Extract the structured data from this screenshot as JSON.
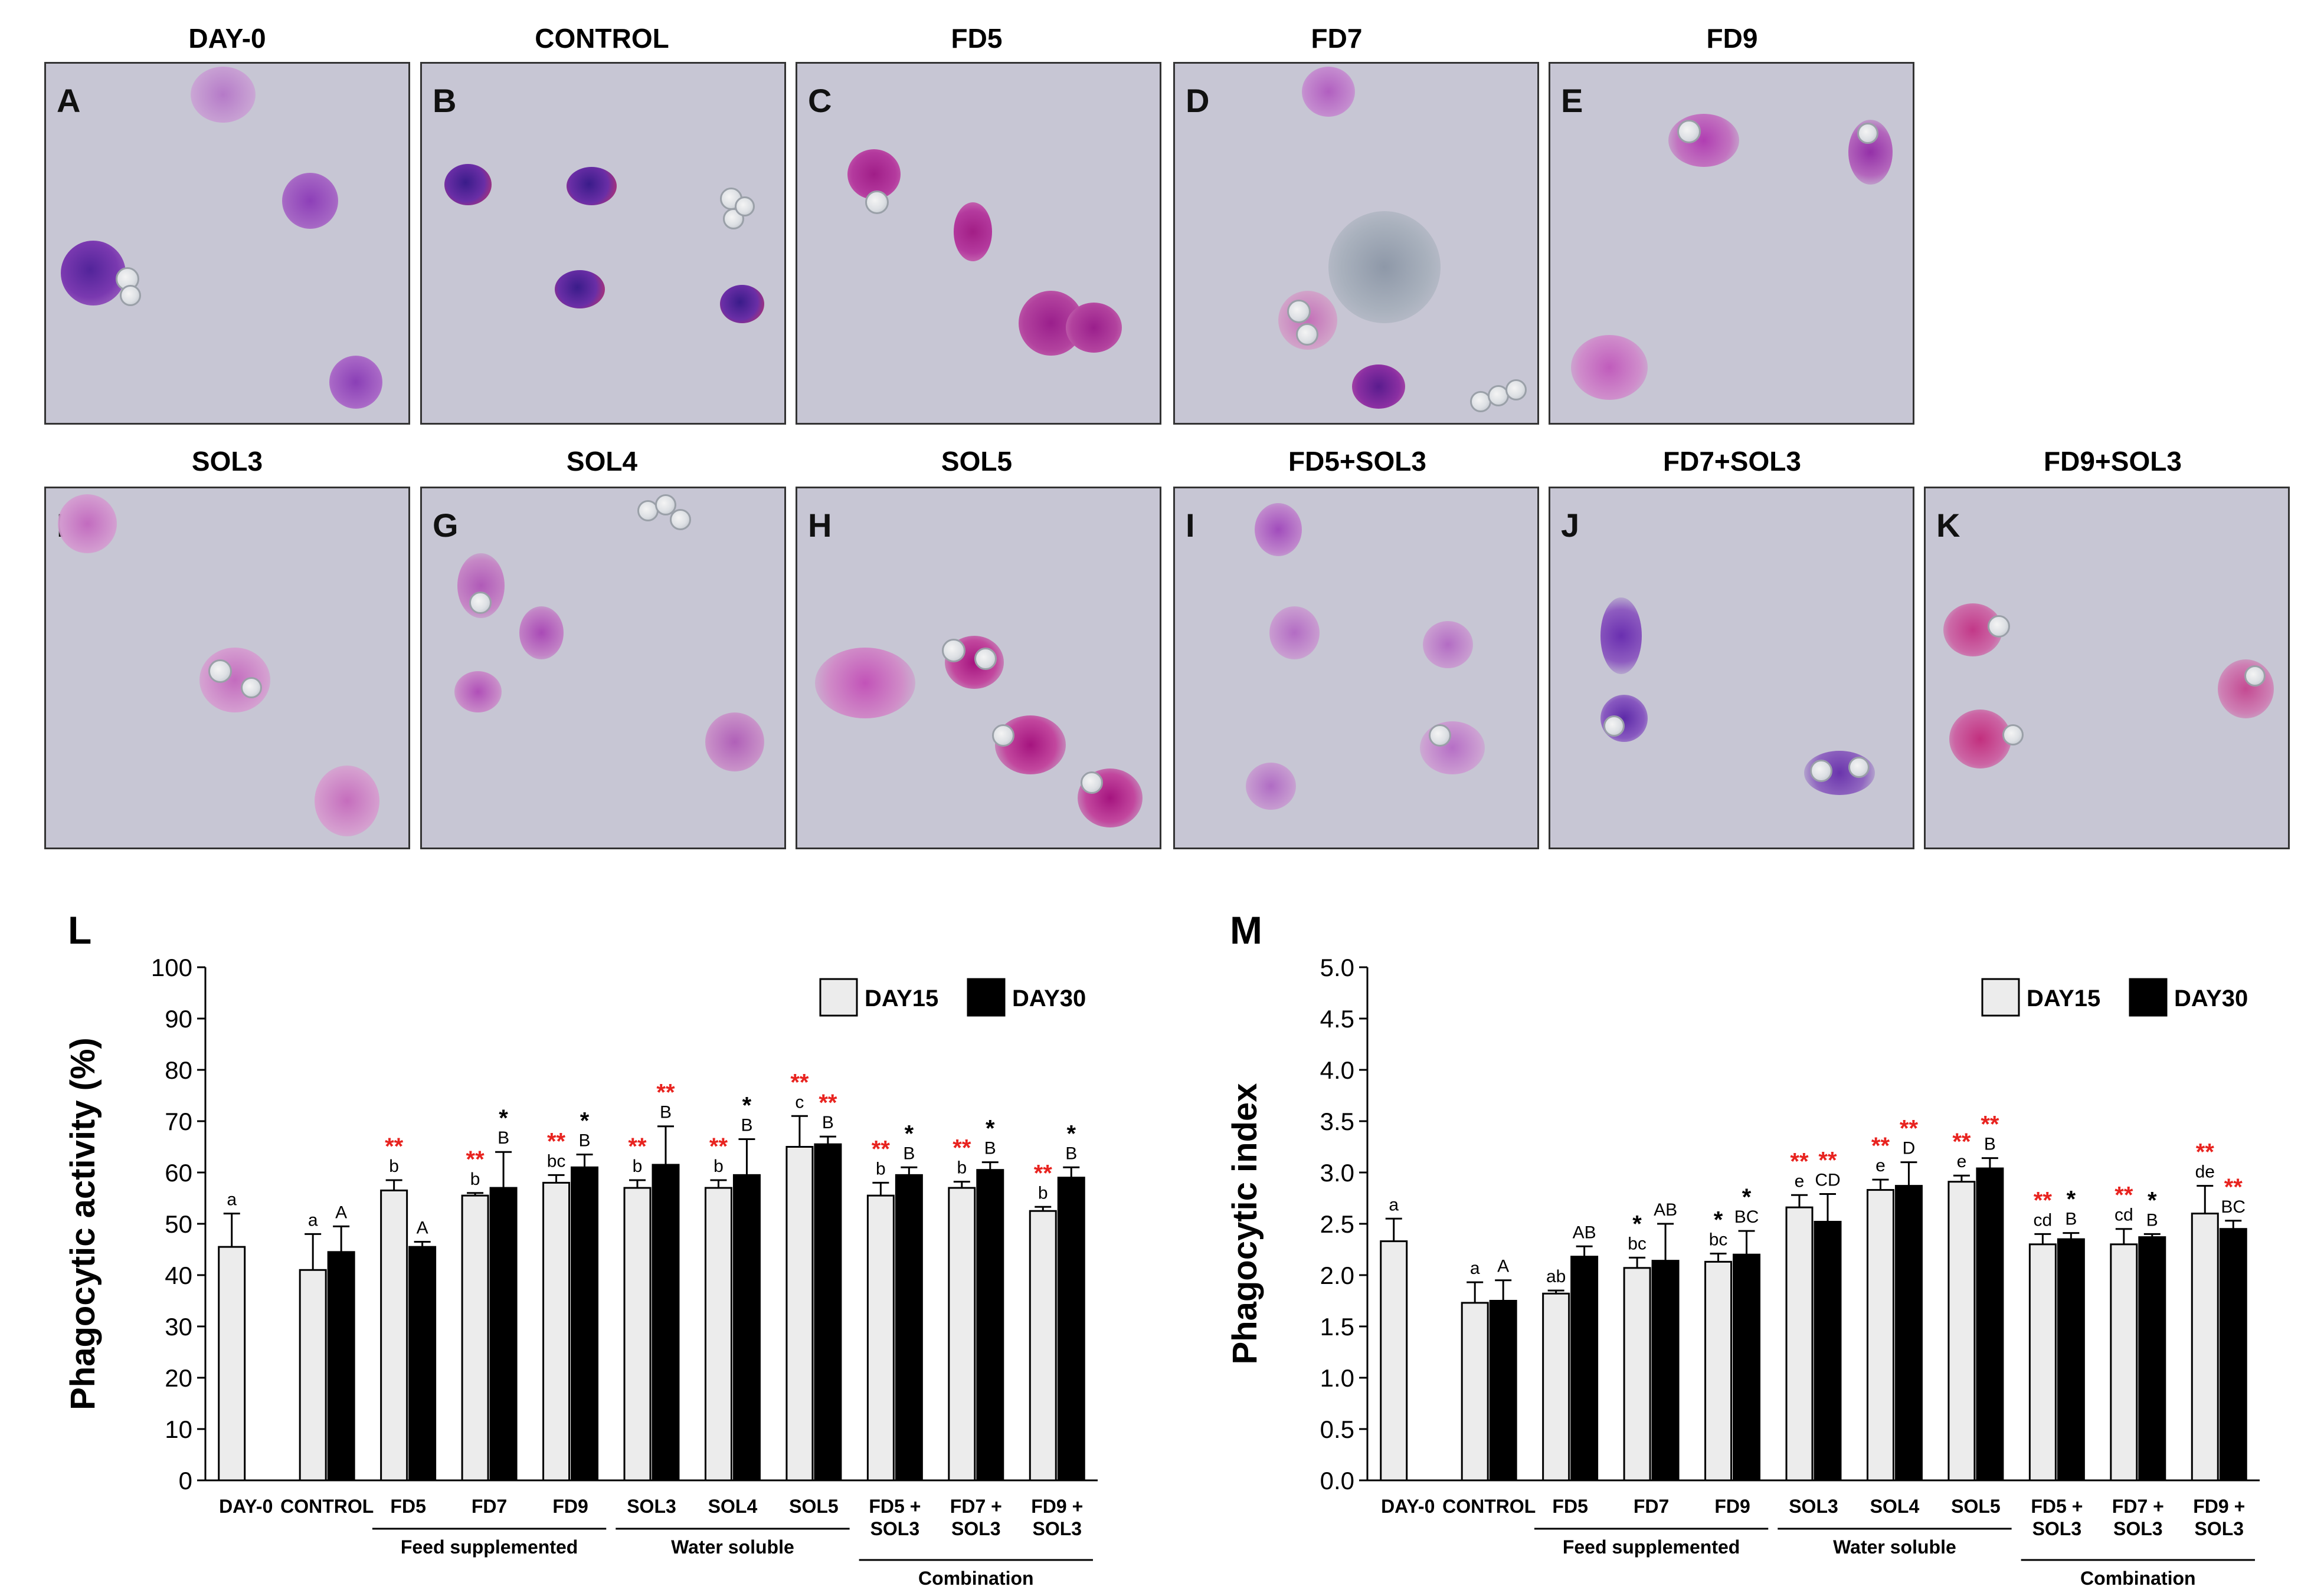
{
  "micrographs": [
    {
      "letter": "A",
      "title": "DAY-0"
    },
    {
      "letter": "B",
      "title": "CONTROL"
    },
    {
      "letter": "C",
      "title": "FD5"
    },
    {
      "letter": "D",
      "title": "FD7"
    },
    {
      "letter": "E",
      "title": "FD9"
    },
    {
      "letter": "F",
      "title": "SOL3"
    },
    {
      "letter": "G",
      "title": "SOL4"
    },
    {
      "letter": "H",
      "title": "SOL5"
    },
    {
      "letter": "I",
      "title": "FD5+SOL3"
    },
    {
      "letter": "J",
      "title": "FD7+SOL3"
    },
    {
      "letter": "K",
      "title": "FD9+SOL3"
    }
  ],
  "colors": {
    "day15": "#ececec",
    "day30": "#000000",
    "sig_red": "#e8231f",
    "sig_black": "#000000"
  },
  "chart_data": [
    {
      "panel": "L",
      "type": "bar",
      "ylabel": "Phagocytic activity (%)",
      "ylim": [
        0,
        100
      ],
      "yticks": [
        "0",
        "10",
        "20",
        "30",
        "40",
        "50",
        "60",
        "70",
        "80",
        "90",
        "100"
      ],
      "legend": [
        "DAY15",
        "DAY30"
      ],
      "legend_position": "top-right",
      "categories": [
        "DAY-0",
        "CONTROL",
        "FD5",
        "FD7",
        "FD9",
        "SOL3",
        "SOL4",
        "SOL5",
        "FD5 +\nSOL3",
        "FD7 +\nSOL3",
        "FD9 +\nSOL3"
      ],
      "groups": [
        {
          "label": "Feed supplemented",
          "from": 2,
          "to": 4
        },
        {
          "label": "Water soluble",
          "from": 5,
          "to": 7
        },
        {
          "label": "Combination",
          "from": 8,
          "to": 10
        }
      ],
      "series": [
        {
          "name": "DAY15",
          "values": [
            45.5,
            41,
            56.5,
            55.5,
            58,
            57,
            57,
            65,
            55.5,
            57,
            52.5
          ],
          "errors": [
            6.5,
            7,
            2,
            0.5,
            1.5,
            1.5,
            1.5,
            6,
            2.5,
            1.2,
            0.8
          ],
          "letters": [
            "a",
            "a",
            "b",
            "b",
            "bc",
            "b",
            "b",
            "c",
            "b",
            "b",
            "b"
          ],
          "sig": [
            "",
            "",
            "**",
            "**",
            "**",
            "**",
            "**",
            "**",
            "**",
            "**",
            "**"
          ]
        },
        {
          "name": "DAY30",
          "values": [
            null,
            44.5,
            45.5,
            57,
            61,
            61.5,
            59.5,
            65.5,
            59.5,
            60.5,
            59
          ],
          "errors": [
            null,
            5,
            1,
            7,
            2.5,
            7.5,
            7,
            1.5,
            1.5,
            1.5,
            2
          ],
          "letters": [
            "A",
            "A",
            "A",
            "B",
            "B",
            "B",
            "B",
            "B",
            "B",
            "B",
            "B"
          ],
          "sig": [
            "",
            "",
            "",
            "*",
            "*",
            "**",
            "*",
            "**",
            "*",
            "*",
            "*"
          ]
        }
      ]
    },
    {
      "panel": "M",
      "type": "bar",
      "ylabel": "Phagocytic index",
      "ylim": [
        0,
        5
      ],
      "yticks": [
        "0.0",
        "0.5",
        "1.0",
        "1.5",
        "2.0",
        "2.5",
        "3.0",
        "3.5",
        "4.0",
        "4.5",
        "5.0"
      ],
      "legend": [
        "DAY15",
        "DAY30"
      ],
      "legend_position": "top-right",
      "categories": [
        "DAY-0",
        "CONTROL",
        "FD5",
        "FD7",
        "FD9",
        "SOL3",
        "SOL4",
        "SOL5",
        "FD5 +\nSOL3",
        "FD7 +\nSOL3",
        "FD9 +\nSOL3"
      ],
      "groups": [
        {
          "label": "Feed supplemented",
          "from": 2,
          "to": 4
        },
        {
          "label": "Water soluble",
          "from": 5,
          "to": 7
        },
        {
          "label": "Combination",
          "from": 8,
          "to": 10
        }
      ],
      "series": [
        {
          "name": "DAY15",
          "values": [
            2.33,
            1.73,
            1.82,
            2.07,
            2.13,
            2.66,
            2.83,
            2.91,
            2.3,
            2.3,
            2.6
          ],
          "errors": [
            0.22,
            0.2,
            0.03,
            0.1,
            0.08,
            0.12,
            0.1,
            0.06,
            0.1,
            0.15,
            0.27
          ],
          "letters": [
            "a",
            "a",
            "ab",
            "bc",
            "bc",
            "e",
            "e",
            "e",
            "cd",
            "cd",
            "de"
          ],
          "sig": [
            "",
            "",
            "",
            "*",
            "*",
            "**",
            "**",
            "**",
            "**",
            "**",
            "**"
          ]
        },
        {
          "name": "DAY30",
          "values": [
            null,
            1.75,
            2.18,
            2.14,
            2.2,
            2.52,
            2.87,
            3.04,
            2.35,
            2.37,
            2.45
          ],
          "errors": [
            null,
            0.2,
            0.1,
            0.36,
            0.23,
            0.27,
            0.23,
            0.1,
            0.06,
            0.03,
            0.08
          ],
          "letters": [
            "A",
            "A",
            "AB",
            "AB",
            "BC",
            "CD",
            "D",
            "B",
            "B",
            "B",
            "BC"
          ],
          "sig": [
            "",
            "",
            "",
            "",
            "*",
            "**",
            "**",
            "**",
            "*",
            "*",
            "**"
          ]
        }
      ]
    }
  ]
}
